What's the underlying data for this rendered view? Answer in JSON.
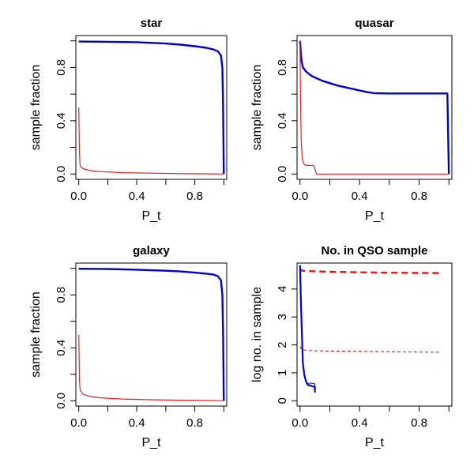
{
  "chart_data": [
    {
      "type": "line",
      "title": "star",
      "xlabel": "P_t",
      "ylabel": "sample fraction",
      "xlim": [
        -0.02,
        1.02
      ],
      "ylim": [
        -0.04,
        1.04
      ],
      "x_ticks": [
        0.0,
        0.2,
        0.4,
        0.6,
        0.8,
        1.0
      ],
      "x_tick_labels": [
        "0.0",
        "",
        "0.4",
        "",
        "0.8",
        ""
      ],
      "y_ticks": [
        0.0,
        0.2,
        0.4,
        0.6,
        0.8,
        1.0
      ],
      "y_tick_labels": [
        "0.0",
        "",
        "0.4",
        "",
        "0.8",
        ""
      ],
      "series": [
        {
          "color": "#0000cc",
          "width": 2.4,
          "dash": "",
          "points": [
            [
              0.0,
              0.995
            ],
            [
              0.2,
              0.993
            ],
            [
              0.4,
              0.99
            ],
            [
              0.6,
              0.98
            ],
            [
              0.7,
              0.972
            ],
            [
              0.8,
              0.96
            ],
            [
              0.88,
              0.948
            ],
            [
              0.93,
              0.935
            ],
            [
              0.96,
              0.92
            ],
            [
              0.98,
              0.89
            ],
            [
              0.99,
              0.8
            ],
            [
              0.995,
              0.5
            ],
            [
              1.0,
              0.0
            ]
          ]
        },
        {
          "color": "#dd2222",
          "width": 1.2,
          "dash": "",
          "points": [
            [
              0.0,
              0.5
            ],
            [
              0.005,
              0.15
            ],
            [
              0.01,
              0.06
            ],
            [
              0.03,
              0.04
            ],
            [
              0.08,
              0.025
            ],
            [
              0.15,
              0.018
            ],
            [
              0.3,
              0.01
            ],
            [
              0.5,
              0.006
            ],
            [
              0.7,
              0.003
            ],
            [
              0.9,
              0.001
            ],
            [
              1.0,
              0.0
            ]
          ]
        }
      ]
    },
    {
      "type": "line",
      "title": "quasar",
      "xlabel": "P_t",
      "ylabel": "sample fraction",
      "xlim": [
        -0.02,
        1.02
      ],
      "ylim": [
        -0.04,
        1.04
      ],
      "x_ticks": [
        0.0,
        0.2,
        0.4,
        0.6,
        0.8,
        1.0
      ],
      "x_tick_labels": [
        "0.0",
        "",
        "0.4",
        "",
        "0.8",
        ""
      ],
      "y_ticks": [
        0.0,
        0.2,
        0.4,
        0.6,
        0.8,
        1.0
      ],
      "y_tick_labels": [
        "0.0",
        "",
        "0.4",
        "",
        "0.8",
        ""
      ],
      "series": [
        {
          "color": "#0000cc",
          "width": 2.4,
          "dash": "",
          "points": [
            [
              0.0,
              1.0
            ],
            [
              0.005,
              0.92
            ],
            [
              0.01,
              0.85
            ],
            [
              0.02,
              0.8
            ],
            [
              0.04,
              0.77
            ],
            [
              0.08,
              0.735
            ],
            [
              0.15,
              0.7
            ],
            [
              0.25,
              0.665
            ],
            [
              0.35,
              0.64
            ],
            [
              0.45,
              0.615
            ],
            [
              0.5,
              0.607
            ],
            [
              0.6,
              0.605
            ],
            [
              0.8,
              0.605
            ],
            [
              0.99,
              0.605
            ],
            [
              1.0,
              0.0
            ]
          ]
        },
        {
          "color": "#dd2222",
          "width": 1.2,
          "dash": "",
          "points": [
            [
              0.0,
              1.0
            ],
            [
              0.003,
              0.6
            ],
            [
              0.008,
              0.25
            ],
            [
              0.015,
              0.12
            ],
            [
              0.025,
              0.075
            ],
            [
              0.04,
              0.065
            ],
            [
              0.06,
              0.065
            ],
            [
              0.09,
              0.065
            ],
            [
              0.1,
              0.04
            ],
            [
              0.11,
              0.0
            ],
            [
              0.2,
              0.0
            ],
            [
              0.5,
              0.0
            ],
            [
              0.8,
              0.0
            ],
            [
              1.0,
              0.0
            ]
          ]
        }
      ]
    },
    {
      "type": "line",
      "title": "galaxy",
      "xlabel": "P_t",
      "ylabel": "sample fraction",
      "xlim": [
        -0.02,
        1.02
      ],
      "ylim": [
        -0.04,
        1.04
      ],
      "x_ticks": [
        0.0,
        0.2,
        0.4,
        0.6,
        0.8,
        1.0
      ],
      "x_tick_labels": [
        "0.0",
        "",
        "0.4",
        "",
        "0.8",
        ""
      ],
      "y_ticks": [
        0.0,
        0.2,
        0.4,
        0.6,
        0.8,
        1.0
      ],
      "y_tick_labels": [
        "0.0",
        "",
        "0.4",
        "",
        "0.8",
        ""
      ],
      "series": [
        {
          "color": "#0000cc",
          "width": 2.4,
          "dash": "",
          "points": [
            [
              0.0,
              0.997
            ],
            [
              0.2,
              0.995
            ],
            [
              0.4,
              0.99
            ],
            [
              0.6,
              0.982
            ],
            [
              0.7,
              0.977
            ],
            [
              0.8,
              0.968
            ],
            [
              0.88,
              0.96
            ],
            [
              0.93,
              0.953
            ],
            [
              0.96,
              0.94
            ],
            [
              0.98,
              0.91
            ],
            [
              0.99,
              0.8
            ],
            [
              0.995,
              0.5
            ],
            [
              1.0,
              0.0
            ]
          ]
        },
        {
          "color": "#dd2222",
          "width": 1.2,
          "dash": "",
          "points": [
            [
              0.0,
              0.5
            ],
            [
              0.005,
              0.15
            ],
            [
              0.01,
              0.08
            ],
            [
              0.03,
              0.05
            ],
            [
              0.08,
              0.032
            ],
            [
              0.15,
              0.022
            ],
            [
              0.3,
              0.013
            ],
            [
              0.5,
              0.008
            ],
            [
              0.7,
              0.004
            ],
            [
              0.9,
              0.002
            ],
            [
              1.0,
              0.0
            ]
          ]
        }
      ]
    },
    {
      "type": "line",
      "title": "No. in QSO sample",
      "xlabel": "P_t",
      "ylabel": "log no. in sample",
      "xlim": [
        -0.02,
        1.02
      ],
      "ylim": [
        -0.19,
        4.93
      ],
      "x_ticks": [
        0.0,
        0.2,
        0.4,
        0.6,
        0.8,
        1.0
      ],
      "x_tick_labels": [
        "0.0",
        "",
        "0.4",
        "",
        "0.8",
        ""
      ],
      "y_ticks": [
        0,
        1,
        2,
        3,
        4
      ],
      "y_tick_labels": [
        "0",
        "1",
        "2",
        "3",
        "4"
      ],
      "series": [
        {
          "color": "#ee1111",
          "width": 2.4,
          "dash": "8,5",
          "points": [
            [
              0.0,
              4.74
            ],
            [
              0.01,
              4.66
            ],
            [
              0.05,
              4.645
            ],
            [
              0.1,
              4.635
            ],
            [
              0.2,
              4.62
            ],
            [
              0.4,
              4.6
            ],
            [
              0.6,
              4.585
            ],
            [
              0.8,
              4.575
            ],
            [
              0.95,
              4.57
            ]
          ]
        },
        {
          "color": "#ee1111",
          "width": 1.1,
          "dash": "4,3",
          "points": [
            [
              0.0,
              1.95
            ],
            [
              0.01,
              1.83
            ],
            [
              0.05,
              1.8
            ],
            [
              0.1,
              1.79
            ],
            [
              0.2,
              1.78
            ],
            [
              0.4,
              1.77
            ],
            [
              0.6,
              1.755
            ],
            [
              0.8,
              1.745
            ],
            [
              0.95,
              1.735
            ]
          ]
        },
        {
          "color": "#0000cc",
          "width": 2.2,
          "dash": "",
          "points": [
            [
              0.0,
              4.85
            ],
            [
              0.005,
              3.8
            ],
            [
              0.01,
              2.8
            ],
            [
              0.015,
              2.0
            ],
            [
              0.02,
              1.3
            ],
            [
              0.03,
              0.9
            ],
            [
              0.04,
              0.7
            ],
            [
              0.05,
              0.58
            ],
            [
              0.08,
              0.52
            ],
            [
              0.1,
              0.5
            ],
            [
              0.1,
              0.3
            ]
          ]
        },
        {
          "color": "#0000cc",
          "width": 1.0,
          "dash": "",
          "points": [
            [
              0.0,
              4.85
            ],
            [
              0.005,
              3.6
            ],
            [
              0.01,
              2.6
            ],
            [
              0.015,
              1.8
            ],
            [
              0.02,
              1.2
            ],
            [
              0.03,
              0.85
            ],
            [
              0.04,
              0.68
            ],
            [
              0.05,
              0.62
            ],
            [
              0.07,
              0.63
            ],
            [
              0.09,
              0.62
            ],
            [
              0.1,
              0.6
            ],
            [
              0.1,
              0.3
            ]
          ]
        }
      ]
    }
  ]
}
